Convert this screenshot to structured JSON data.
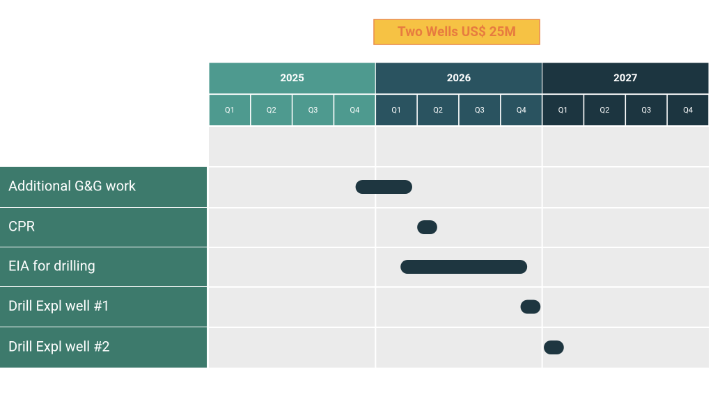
{
  "chart_data": {
    "type": "gantt",
    "title": "Two Wells US$ 25M",
    "years": [
      "2025",
      "2026",
      "2027"
    ],
    "year_colors": [
      "#4e9a8f",
      "#2a5360",
      "#1c3540"
    ],
    "quarters": [
      "Q1",
      "Q2",
      "Q3",
      "Q4",
      "Q1",
      "Q2",
      "Q3",
      "Q4",
      "Q1",
      "Q2",
      "Q3",
      "Q4"
    ],
    "xlim": [
      2025,
      2028
    ],
    "categories": [
      "Additional G&G work",
      "CPR",
      "EIA for drilling",
      "Drill Expl well #1",
      "Drill Expl well #2"
    ],
    "start": [
      2025.88,
      2026.25,
      2026.15,
      2026.87,
      2027.01
    ],
    "end": [
      2026.22,
      2026.37,
      2026.91,
      2026.99,
      2027.13
    ],
    "color": "#1e3640",
    "label_color": "#3d7a6c"
  }
}
